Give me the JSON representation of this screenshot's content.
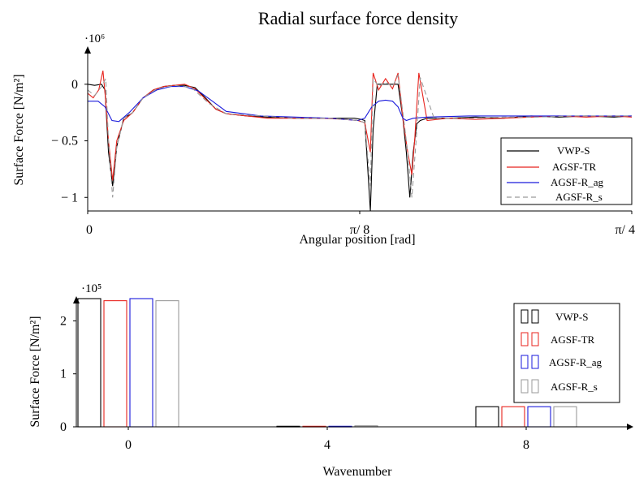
{
  "chart_data": [
    {
      "type": "line",
      "title": "Radial surface force density",
      "xlabel": "Angular position [rad]",
      "ylabel": "Surface Force [N/m²]",
      "y_multiplier": "·10⁶",
      "xlim": [
        0,
        0.7854
      ],
      "ylim": [
        -1.12,
        0.3
      ],
      "x_ticks": [
        {
          "value": 0,
          "label": "0"
        },
        {
          "value": 0.3927,
          "label": "π/ 8"
        },
        {
          "value": 0.7854,
          "label": "π/ 4"
        }
      ],
      "y_ticks": [
        {
          "value": 0,
          "label": "0"
        },
        {
          "value": -0.5,
          "label": "− 0.5"
        },
        {
          "value": -1,
          "label": "− 1"
        }
      ],
      "legend_position": "right",
      "series": [
        {
          "name": "VWP-S",
          "color": "#000000",
          "dash": "none",
          "x": [
            0,
            0.01,
            0.02,
            0.025,
            0.03,
            0.036,
            0.042,
            0.052,
            0.065,
            0.08,
            0.095,
            0.11,
            0.125,
            0.14,
            0.155,
            0.17,
            0.185,
            0.2,
            0.23,
            0.26,
            0.3,
            0.34,
            0.37,
            0.385,
            0.395,
            0.4,
            0.408,
            0.412,
            0.418,
            0.448,
            0.455,
            0.46,
            0.465,
            0.47,
            0.475,
            0.48,
            0.49,
            0.52,
            0.56,
            0.6,
            0.64,
            0.68,
            0.72,
            0.76,
            0.7854
          ],
          "y": [
            0,
            -0.01,
            0,
            -0.05,
            -0.6,
            -0.9,
            -0.55,
            -0.3,
            -0.25,
            -0.12,
            -0.05,
            -0.02,
            -0.01,
            -0.01,
            -0.03,
            -0.12,
            -0.22,
            -0.26,
            -0.28,
            -0.29,
            -0.3,
            -0.3,
            -0.3,
            -0.3,
            -0.31,
            -0.32,
            -1.12,
            -0.4,
            0,
            0,
            -0.3,
            -0.6,
            -1.0,
            -0.6,
            -0.35,
            -0.32,
            -0.3,
            -0.3,
            -0.29,
            -0.3,
            -0.28,
            -0.29,
            -0.28,
            -0.29,
            -0.28
          ]
        },
        {
          "name": "AGSF-TR",
          "color": "#e8231d",
          "dash": "none",
          "x": [
            0,
            0.008,
            0.016,
            0.022,
            0.026,
            0.03,
            0.036,
            0.042,
            0.052,
            0.065,
            0.08,
            0.095,
            0.11,
            0.125,
            0.14,
            0.155,
            0.17,
            0.185,
            0.2,
            0.23,
            0.26,
            0.3,
            0.34,
            0.37,
            0.39,
            0.4,
            0.408,
            0.412,
            0.42,
            0.43,
            0.44,
            0.448,
            0.455,
            0.462,
            0.468,
            0.472,
            0.478,
            0.49,
            0.52,
            0.56,
            0.6,
            0.64,
            0.68,
            0.72,
            0.76,
            0.7854
          ],
          "y": [
            -0.08,
            -0.12,
            -0.05,
            0.12,
            -0.15,
            -0.5,
            -0.85,
            -0.5,
            -0.32,
            -0.25,
            -0.12,
            -0.05,
            -0.02,
            -0.01,
            0.0,
            -0.04,
            -0.13,
            -0.22,
            -0.26,
            -0.28,
            -0.3,
            -0.3,
            -0.3,
            -0.31,
            -0.32,
            -0.34,
            -0.6,
            0.1,
            -0.05,
            0.05,
            -0.04,
            0.1,
            -0.3,
            -0.6,
            -0.8,
            -0.5,
            0.1,
            -0.32,
            -0.3,
            -0.31,
            -0.3,
            -0.29,
            -0.28,
            -0.29,
            -0.28,
            -0.29
          ]
        },
        {
          "name": "AGSF-R_ag",
          "color": "#1a1adc",
          "dash": "none",
          "x": [
            0,
            0.015,
            0.025,
            0.035,
            0.045,
            0.06,
            0.08,
            0.1,
            0.12,
            0.14,
            0.16,
            0.18,
            0.2,
            0.25,
            0.3,
            0.35,
            0.39,
            0.4,
            0.41,
            0.42,
            0.43,
            0.44,
            0.448,
            0.455,
            0.46,
            0.47,
            0.49,
            0.55,
            0.6,
            0.65,
            0.7,
            0.75,
            0.7854
          ],
          "y": [
            -0.15,
            -0.15,
            -0.2,
            -0.32,
            -0.33,
            -0.25,
            -0.12,
            -0.05,
            -0.02,
            -0.02,
            -0.06,
            -0.15,
            -0.24,
            -0.28,
            -0.29,
            -0.3,
            -0.32,
            -0.3,
            -0.2,
            -0.15,
            -0.14,
            -0.15,
            -0.2,
            -0.3,
            -0.32,
            -0.3,
            -0.29,
            -0.28,
            -0.28,
            -0.28,
            -0.28,
            -0.28,
            -0.28
          ]
        },
        {
          "name": "AGSF-R_s",
          "color": "#9a9a9a",
          "dash": "6,4",
          "x": [
            0,
            0.01,
            0.02,
            0.026,
            0.03,
            0.036,
            0.042,
            0.052,
            0.065,
            0.08,
            0.1,
            0.125,
            0.15,
            0.175,
            0.2,
            0.25,
            0.3,
            0.35,
            0.39,
            0.4,
            0.408,
            0.412,
            0.42,
            0.43,
            0.44,
            0.448,
            0.456,
            0.462,
            0.468,
            0.474,
            0.48,
            0.5,
            0.55,
            0.6,
            0.65,
            0.7,
            0.75,
            0.7854
          ],
          "y": [
            -0.05,
            -0.1,
            -0.02,
            0.05,
            -0.5,
            -1.0,
            -0.55,
            -0.3,
            -0.25,
            -0.12,
            -0.04,
            -0.01,
            -0.03,
            -0.17,
            -0.26,
            -0.28,
            -0.3,
            -0.3,
            -0.32,
            -0.34,
            -0.9,
            0.05,
            -0.02,
            0.02,
            -0.02,
            0.08,
            -0.3,
            -0.6,
            -1.0,
            -0.5,
            0.06,
            -0.3,
            -0.3,
            -0.29,
            -0.29,
            -0.28,
            -0.28,
            -0.28
          ]
        }
      ]
    },
    {
      "type": "bar",
      "xlabel": "Wavenumber",
      "ylabel": "Surface Force [N/m²]",
      "y_multiplier": "·10⁵",
      "categories": [
        0,
        4,
        8
      ],
      "ylim": [
        0,
        2.42
      ],
      "y_ticks": [
        {
          "value": 0,
          "label": "0"
        },
        {
          "value": 1,
          "label": "1"
        },
        {
          "value": 2,
          "label": "2"
        }
      ],
      "x_ticks": [
        {
          "value": 0,
          "label": "0"
        },
        {
          "value": 4,
          "label": "4"
        },
        {
          "value": 8,
          "label": "8"
        }
      ],
      "legend_position": "right",
      "series": [
        {
          "name": "VWP-S",
          "color": "#000000",
          "values": [
            2.42,
            0.01,
            0.38
          ]
        },
        {
          "name": "AGSF-TR",
          "color": "#e8231d",
          "values": [
            2.38,
            0.01,
            0.38
          ]
        },
        {
          "name": "AGSF-R_ag",
          "color": "#1a1adc",
          "values": [
            2.42,
            0.01,
            0.38
          ]
        },
        {
          "name": "AGSF-R_s",
          "color": "#9a9a9a",
          "values": [
            2.38,
            0.02,
            0.38
          ]
        }
      ]
    }
  ]
}
